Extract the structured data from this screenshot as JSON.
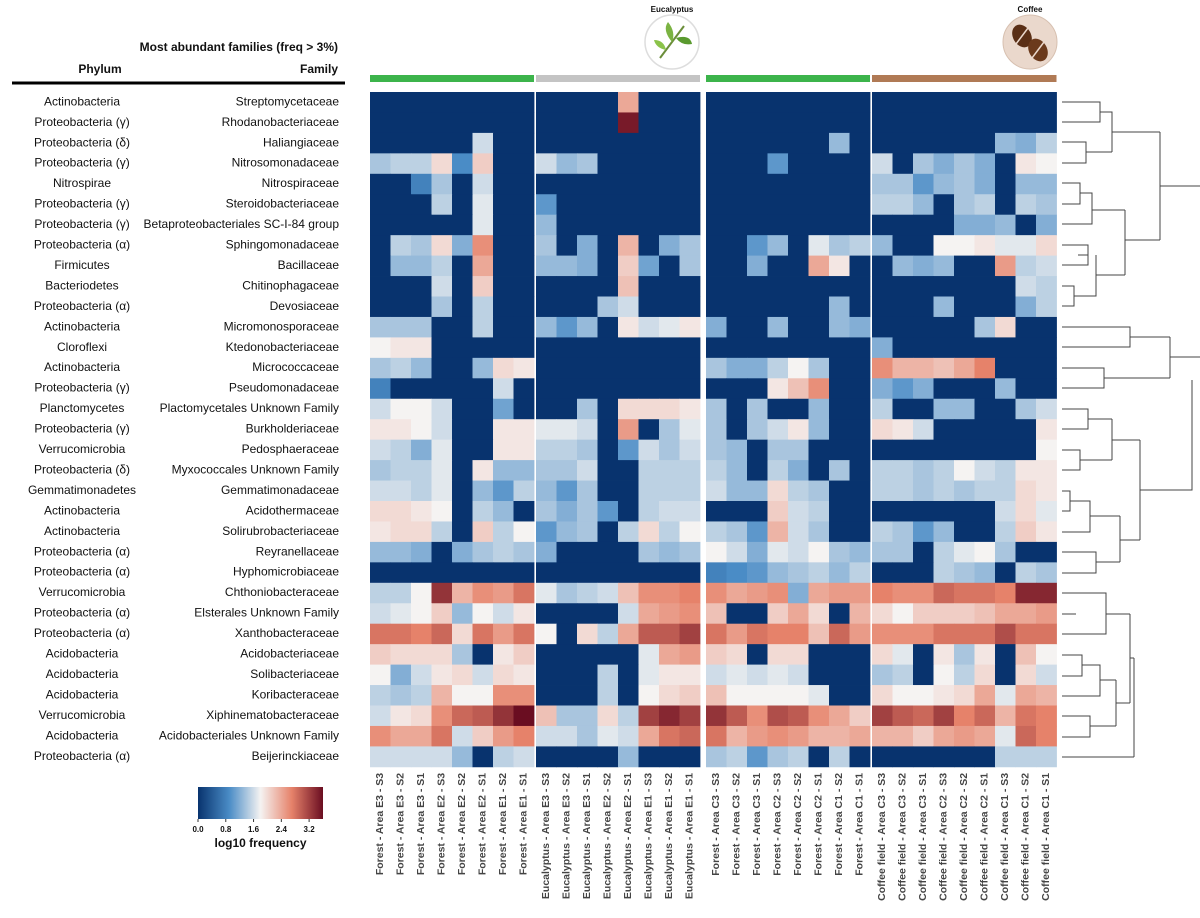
{
  "chart_data": {
    "type": "heatmap",
    "title": "Most abundant families (freq > 3%)",
    "row_header_phylum": "Phylum",
    "row_header_family": "Family",
    "rows": [
      {
        "phylum": "Actinobacteria",
        "family": "Streptomycetaceae"
      },
      {
        "phylum": "Proteobacteria (γ)",
        "family": "Rhodanobacteriaceae"
      },
      {
        "phylum": "Proteobacteria (δ)",
        "family": "Haliangiaceae"
      },
      {
        "phylum": "Proteobacteria (γ)",
        "family": "Nitrosomonadaceae"
      },
      {
        "phylum": "Nitrospirae",
        "family": "Nitrospiraceae"
      },
      {
        "phylum": "Proteobacteria (γ)",
        "family": "Steroidobacteriaceae"
      },
      {
        "phylum": "Proteobacteria (γ)",
        "family": "Betaproteobacteriales SC-I-84 group"
      },
      {
        "phylum": "Proteobacteria (α)",
        "family": "Sphingomonadaceae"
      },
      {
        "phylum": "Firmicutes",
        "family": "Bacillaceae"
      },
      {
        "phylum": "Bacteriodetes",
        "family": "Chitinophagaceae"
      },
      {
        "phylum": "Proteobacteria (α)",
        "family": "Devosiaceae"
      },
      {
        "phylum": "Actinobacteria",
        "family": "Micromonosporaceae"
      },
      {
        "phylum": "Cloroflexi",
        "family": "Ktedonobacteriaceae"
      },
      {
        "phylum": "Actinobacteria",
        "family": "Micrococcaceae"
      },
      {
        "phylum": "Proteobacteria (γ)",
        "family": "Pseudomonadaceae"
      },
      {
        "phylum": "Planctomycetes",
        "family": "Plactomycetales Unknown Family"
      },
      {
        "phylum": "Proteobacteria (γ)",
        "family": "Burkholderiaceae"
      },
      {
        "phylum": "Verrucomicrobia",
        "family": "Pedosphaeraceae"
      },
      {
        "phylum": "Proteobacteria (δ)",
        "family": "Myxococcales Unknown Family"
      },
      {
        "phylum": "Gemmatimonadetes",
        "family": "Gemmatimonadaceae"
      },
      {
        "phylum": "Actinobacteria",
        "family": "Acidothermaceae"
      },
      {
        "phylum": "Actinobacteria",
        "family": "Solirubrobacteriaceae"
      },
      {
        "phylum": "Proteobacteria (α)",
        "family": "Reyranellaceae"
      },
      {
        "phylum": "Proteobacteria (α)",
        "family": "Hyphomicrobiaceae"
      },
      {
        "phylum": "Verrucomicrobia",
        "family": "Chthoniobacteraceae"
      },
      {
        "phylum": "Proteobacteria (α)",
        "family": "Elsterales Unknown Family"
      },
      {
        "phylum": "Proteobacteria (α)",
        "family": "Xanthobacteraceae"
      },
      {
        "phylum": "Acidobacteria",
        "family": "Acidobacteriaceae"
      },
      {
        "phylum": "Acidobacteria",
        "family": "Solibacteriaceae"
      },
      {
        "phylum": "Acidobacteria",
        "family": "Koribacteraceae"
      },
      {
        "phylum": "Verrucomicrobia",
        "family": "Xiphinematobacteraceae"
      },
      {
        "phylum": "Acidobacteria",
        "family": "Acidobacteriales Unknown Family"
      },
      {
        "phylum": "Proteobacteria (α)",
        "family": "Beijerinckiaceae"
      }
    ],
    "column_groups": [
      {
        "color": "#3cb44b",
        "columns": [
          "Forest - Area E3 - S3",
          "Forest - Area E3 - S2",
          "Forest - Area E3 - S1",
          "Forest - Area E2 - S3",
          "Forest - Area E2 - S2",
          "Forest - Area E2 - S1",
          "Forest - Area E1 - S2",
          "Forest - Area E1 - S1"
        ]
      },
      {
        "color": "#c4c4c4",
        "icon_label": "Eucalyptus",
        "columns": [
          "Eucalyptus - Area E3 - S3",
          "Eucalyptus - Area E3 - S2",
          "Eucalyptus - Area E3 - S1",
          "Eucalyptus - Area E2 - S2",
          "Eucalyptus - Area E2 - S1",
          "Eucalyptus - Area E1 - S3",
          "Eucalyptus - Area E1 - S2",
          "Eucalyptus - Area E1 - S1"
        ]
      },
      {
        "color": "#3cb44b",
        "columns": [
          "Forest - Area C3 - S3",
          "Forest - Area C3 - S2",
          "Forest - Area C3 - S1",
          "Forest - Area C2 - S3",
          "Forest - Area C2 - S2",
          "Forest - Area C2 - S1",
          "Forest - Area C1 - S2",
          "Forest - Area C1 - S1"
        ]
      },
      {
        "color": "#b07a55",
        "icon_label": "Coffee",
        "columns": [
          "Coffee field - Area C3 - S3",
          "Coffee field - Area C3 - S2",
          "Coffee field - Area C3 - S1",
          "Coffee field - Area C2 - S3",
          "Coffee field - Area C2 - S2",
          "Coffee field - Area C2 - S1",
          "Coffee field - Area C1 - S3",
          "Coffee field - Area C1 - S2",
          "Coffee field - Area C1 - S1"
        ]
      }
    ],
    "values": [
      [
        0,
        0,
        0,
        0,
        0,
        0,
        0,
        0,
        0,
        0,
        0,
        0,
        2.4,
        0,
        0,
        0,
        0,
        0,
        0,
        0,
        0,
        0,
        0,
        0,
        0,
        0,
        0,
        0,
        0,
        0,
        0,
        0,
        0
      ],
      [
        0,
        0,
        0,
        0,
        0,
        0,
        0,
        0,
        0,
        0,
        0,
        0,
        3.5,
        0,
        0,
        0,
        0,
        0,
        0,
        0,
        0,
        0,
        0,
        0,
        0,
        0,
        0,
        0,
        0,
        0,
        0,
        0,
        0
      ],
      [
        0,
        0,
        0,
        0,
        0,
        1.6,
        0,
        0,
        0,
        0,
        0,
        0,
        0,
        0,
        0,
        0,
        0,
        0,
        0,
        0,
        0,
        0,
        1.3,
        0,
        0,
        0,
        0,
        0,
        0,
        0,
        1.3,
        1.2,
        1.5
      ],
      [
        1.4,
        1.5,
        1.5,
        2.0,
        0.9,
        2.1,
        0,
        0,
        1.6,
        1.3,
        1.4,
        0,
        0,
        0,
        0,
        0,
        0,
        0,
        0,
        1.0,
        0,
        0,
        0,
        0,
        1.6,
        0,
        1.4,
        1.2,
        1.4,
        1.2,
        0,
        1.9,
        1.8
      ],
      [
        0,
        0,
        0.8,
        1.4,
        0,
        1.6,
        0,
        0,
        0,
        0,
        0,
        0,
        0,
        0,
        0,
        0,
        0,
        0,
        0,
        0,
        0,
        0,
        0,
        0,
        1.4,
        1.4,
        1.0,
        1.3,
        1.4,
        1.2,
        0,
        1.3,
        1.3
      ],
      [
        0,
        0,
        0,
        1.5,
        0,
        1.7,
        0,
        0,
        1.0,
        0,
        0,
        0,
        0,
        0,
        0,
        0,
        0,
        0,
        0,
        0,
        0,
        0,
        0,
        0,
        1.5,
        1.5,
        1.3,
        0,
        1.4,
        1.5,
        0,
        1.5,
        1.4
      ],
      [
        0,
        0,
        0,
        0,
        0,
        1.7,
        0,
        0,
        1.3,
        0,
        0,
        0,
        0,
        0,
        0,
        0,
        0,
        0,
        0,
        0,
        0,
        0,
        0,
        0,
        0,
        0,
        0,
        0,
        1.2,
        1.2,
        1.3,
        0,
        1.2
      ],
      [
        0,
        1.5,
        1.4,
        2.0,
        1.2,
        2.6,
        0,
        0,
        1.4,
        0,
        1.2,
        0,
        2.3,
        0,
        1.2,
        1.4,
        0,
        0,
        1.0,
        1.3,
        0,
        1.7,
        1.4,
        1.5,
        1.3,
        0,
        0,
        1.8,
        1.8,
        1.9,
        1.7,
        1.7,
        2.0
      ],
      [
        0,
        1.3,
        1.3,
        1.5,
        0,
        2.4,
        0,
        0,
        1.3,
        1.3,
        1.2,
        0,
        2.1,
        1.1,
        0,
        1.4,
        0,
        0,
        1.2,
        0,
        0,
        2.4,
        1.9,
        0,
        0,
        1.3,
        1.2,
        1.3,
        0,
        0,
        2.5,
        1.5,
        1.6
      ],
      [
        0,
        0,
        0,
        1.6,
        0,
        2.1,
        0,
        0,
        0,
        0,
        0,
        0,
        2.2,
        0,
        0,
        0,
        0,
        0,
        0,
        0,
        0,
        0,
        0,
        0,
        0,
        0,
        0,
        0,
        0,
        0,
        0,
        1.6,
        1.5
      ],
      [
        0,
        0,
        0,
        1.4,
        0,
        1.5,
        0,
        0,
        0,
        0,
        0,
        1.4,
        1.6,
        0,
        0,
        0,
        0,
        0,
        0,
        0,
        0,
        0,
        1.3,
        0,
        0,
        0,
        0,
        1.3,
        0,
        0,
        0,
        1.2,
        1.5
      ],
      [
        1.4,
        1.4,
        1.4,
        0,
        0,
        1.5,
        0,
        0,
        1.3,
        1.0,
        1.3,
        0,
        1.9,
        1.6,
        1.7,
        1.9,
        1.2,
        0,
        0,
        1.3,
        0,
        0,
        1.3,
        1.2,
        0,
        0,
        0,
        0,
        0,
        1.4,
        2.0,
        0,
        0
      ],
      [
        1.8,
        1.9,
        1.9,
        0,
        0,
        0,
        0,
        0,
        0,
        0,
        0,
        0,
        0,
        0,
        0,
        0,
        0,
        0,
        0,
        0,
        0,
        0,
        0,
        0,
        1.2,
        0,
        0,
        0,
        0,
        0,
        0,
        0,
        0
      ],
      [
        1.4,
        1.5,
        1.3,
        0,
        0,
        1.3,
        2.0,
        1.9,
        0,
        0,
        0,
        0,
        0,
        0,
        0,
        0,
        1.4,
        1.2,
        1.2,
        1.5,
        1.8,
        1.4,
        0,
        0,
        2.6,
        2.3,
        2.3,
        2.2,
        2.4,
        2.7,
        0,
        0,
        0
      ],
      [
        0.8,
        0,
        0,
        0,
        0,
        0,
        1.6,
        0,
        0,
        0,
        0,
        0,
        0,
        0,
        0,
        0,
        0,
        0,
        0,
        1.9,
        2.2,
        2.6,
        0,
        0,
        1.2,
        1.0,
        1.2,
        0,
        0,
        0,
        1.3,
        0,
        0
      ],
      [
        1.6,
        1.8,
        1.8,
        1.6,
        0,
        0,
        1.1,
        0,
        0,
        0,
        1.4,
        0,
        2.0,
        2.0,
        2.0,
        1.9,
        1.4,
        0,
        1.4,
        0,
        0,
        1.3,
        0,
        0,
        1.5,
        0,
        0,
        1.3,
        1.3,
        0,
        0,
        1.4,
        1.6
      ],
      [
        1.9,
        1.9,
        1.8,
        1.6,
        0,
        0,
        1.9,
        1.9,
        1.7,
        1.7,
        1.6,
        0,
        2.5,
        0,
        1.4,
        1.7,
        1.4,
        0,
        1.4,
        1.6,
        1.9,
        1.3,
        0,
        0,
        2.0,
        1.9,
        1.6,
        0,
        0,
        0,
        0,
        0,
        1.9
      ],
      [
        1.6,
        1.5,
        1.2,
        1.7,
        0,
        0,
        1.9,
        1.9,
        1.5,
        1.5,
        1.4,
        0,
        1.0,
        1.6,
        1.4,
        1.6,
        1.4,
        1.3,
        0,
        1.4,
        1.4,
        0,
        0,
        0,
        0,
        0,
        0,
        0,
        0,
        0,
        0,
        0,
        1.8
      ],
      [
        1.4,
        1.5,
        1.5,
        1.7,
        0,
        1.9,
        1.3,
        1.3,
        1.4,
        1.4,
        1.6,
        0,
        0,
        1.5,
        1.5,
        1.5,
        1.5,
        1.3,
        0,
        1.5,
        1.2,
        0,
        1.4,
        0,
        1.5,
        1.5,
        1.4,
        1.5,
        1.8,
        1.6,
        1.5,
        1.9,
        1.9
      ],
      [
        1.6,
        1.6,
        1.5,
        1.7,
        0,
        1.3,
        1.0,
        1.5,
        1.3,
        1.0,
        1.4,
        0,
        0,
        1.5,
        1.5,
        1.5,
        1.6,
        1.3,
        1.3,
        2.0,
        1.5,
        1.4,
        0,
        0,
        1.5,
        1.5,
        1.4,
        1.5,
        1.4,
        1.5,
        1.5,
        2.0,
        1.9
      ],
      [
        2.0,
        2.0,
        1.9,
        1.8,
        0,
        1.5,
        1.3,
        0,
        1.4,
        1.2,
        1.4,
        1.0,
        0,
        1.5,
        1.6,
        1.6,
        0,
        0,
        0,
        2.1,
        1.6,
        1.5,
        0,
        0,
        0,
        0,
        0,
        0,
        0,
        0,
        1.6,
        2.0,
        1.7
      ],
      [
        1.9,
        2.0,
        2.0,
        1.5,
        0,
        2.1,
        1.5,
        1.8,
        1.0,
        1.3,
        1.4,
        0,
        1.5,
        2.0,
        1.5,
        1.8,
        1.5,
        1.4,
        1.0,
        2.3,
        1.6,
        1.4,
        0,
        0,
        1.5,
        1.4,
        1.0,
        1.3,
        0,
        0,
        1.5,
        2.1,
        1.9
      ],
      [
        1.3,
        1.3,
        1.2,
        0,
        1.2,
        1.4,
        1.5,
        1.4,
        1.2,
        0,
        0,
        0,
        0,
        1.4,
        1.3,
        1.4,
        1.8,
        1.6,
        1.2,
        1.7,
        1.6,
        1.8,
        1.4,
        1.3,
        1.4,
        1.4,
        0,
        1.5,
        1.7,
        1.8,
        1.4,
        0,
        0
      ],
      [
        0,
        0,
        0,
        0,
        0,
        0,
        0,
        0,
        0,
        0,
        0,
        0,
        0,
        0,
        0,
        0,
        0.8,
        0.9,
        1.0,
        1.3,
        1.4,
        1.5,
        1.3,
        1.5,
        0,
        0,
        0,
        1.5,
        1.4,
        1.3,
        0,
        1.5,
        1.4
      ],
      [
        1.5,
        1.5,
        1.8,
        3.3,
        2.3,
        2.6,
        2.5,
        2.8,
        1.7,
        1.4,
        1.5,
        1.6,
        2.2,
        2.6,
        2.6,
        2.7,
        2.6,
        2.4,
        2.5,
        2.6,
        1.2,
        2.4,
        2.5,
        2.5,
        2.7,
        2.6,
        2.6,
        2.9,
        2.8,
        2.8,
        2.7,
        3.4,
        3.4
      ],
      [
        1.6,
        1.7,
        1.8,
        2.1,
        1.3,
        1.8,
        1.6,
        1.9,
        0,
        0,
        0,
        0,
        1.6,
        2.4,
        2.5,
        2.6,
        2.2,
        0,
        0,
        2.1,
        2.4,
        2.0,
        0,
        2.3,
        2.0,
        1.8,
        2.1,
        2.1,
        2.1,
        2.2,
        2.4,
        2.4,
        2.5
      ],
      [
        2.8,
        2.8,
        2.7,
        2.9,
        2.0,
        2.8,
        2.5,
        2.8,
        1.8,
        0,
        2.0,
        1.5,
        2.4,
        3.0,
        3.0,
        3.2,
        2.8,
        2.5,
        2.8,
        2.7,
        2.7,
        2.2,
        2.9,
        2.5,
        2.6,
        2.6,
        2.6,
        2.8,
        2.8,
        2.8,
        3.1,
        2.8,
        2.8
      ],
      [
        2.1,
        2.0,
        2.0,
        2.0,
        1.4,
        0,
        1.9,
        2.1,
        0,
        0,
        0,
        0,
        0,
        1.7,
        2.4,
        2.5,
        2.1,
        2.0,
        0,
        2.0,
        2.0,
        0,
        0,
        0,
        2.0,
        1.7,
        0,
        1.9,
        1.4,
        1.9,
        0,
        2.2,
        1.8
      ],
      [
        1.8,
        1.2,
        1.6,
        1.9,
        2.0,
        1.6,
        2.0,
        1.9,
        0,
        0,
        0,
        1.5,
        0,
        1.7,
        1.9,
        1.9,
        1.6,
        1.7,
        1.6,
        1.7,
        1.6,
        0,
        0,
        0,
        1.4,
        1.5,
        0,
        1.8,
        1.5,
        2.0,
        0,
        2.0,
        1.6
      ],
      [
        1.5,
        1.4,
        1.5,
        2.3,
        1.8,
        1.8,
        2.6,
        2.6,
        0,
        0,
        0,
        1.5,
        0,
        1.8,
        2.0,
        2.1,
        2.2,
        1.8,
        1.8,
        1.8,
        1.8,
        1.7,
        0,
        0,
        2.0,
        1.8,
        1.8,
        1.9,
        2.0,
        2.4,
        1.7,
        2.4,
        2.3
      ],
      [
        1.6,
        1.9,
        2.0,
        2.6,
        2.9,
        3.0,
        3.3,
        3.6,
        2.2,
        1.4,
        1.4,
        2.0,
        1.5,
        3.2,
        3.4,
        3.2,
        3.3,
        3.0,
        2.6,
        3.1,
        3.0,
        2.6,
        2.4,
        2.1,
        3.2,
        3.0,
        2.9,
        3.2,
        2.7,
        2.9,
        2.3,
        2.8,
        2.7
      ],
      [
        2.6,
        2.4,
        2.4,
        2.8,
        1.6,
        2.1,
        2.5,
        2.7,
        1.6,
        1.6,
        1.4,
        1.7,
        1.6,
        2.4,
        2.8,
        2.9,
        2.8,
        2.3,
        2.5,
        2.6,
        2.5,
        2.3,
        2.3,
        2.4,
        2.3,
        2.3,
        2.1,
        2.4,
        2.5,
        2.4,
        1.7,
        2.9,
        2.7
      ],
      [
        1.6,
        1.6,
        1.6,
        1.6,
        1.3,
        0,
        1.5,
        1.6,
        0,
        0,
        0,
        0,
        1.3,
        0,
        0,
        0,
        1.4,
        1.5,
        1.0,
        1.4,
        1.5,
        0,
        1.5,
        0,
        0,
        0,
        0,
        0,
        0,
        0,
        1.5,
        1.5,
        1.5
      ]
    ],
    "colorbar": {
      "label": "log10 frequency",
      "range": [
        0,
        3.6
      ],
      "ticks": [
        {
          "value": 0,
          "label": "0.0"
        },
        0.8,
        1.6,
        2.4,
        3.2
      ],
      "colormap": [
        "#08336e",
        "#4a8cc6",
        "#f5f3f2",
        "#e6826a",
        "#6a0d21"
      ]
    }
  }
}
